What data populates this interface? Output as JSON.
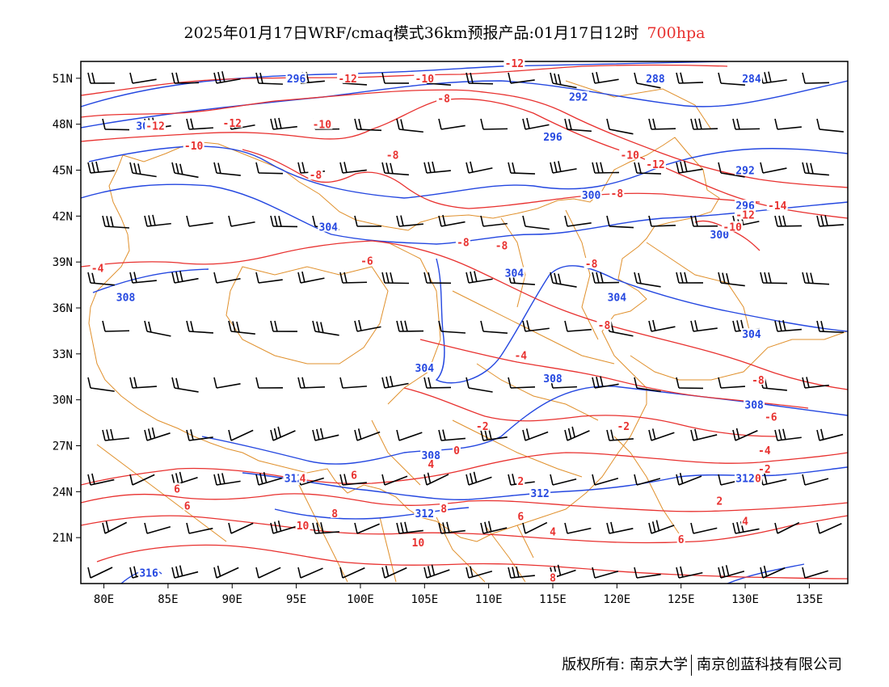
{
  "header": {
    "title": "2025年01月17日WRF/cmaq模式36km预报产品:01月17日12时",
    "level": "700hpa"
  },
  "axes": {
    "lat_labels": [
      "51N",
      "48N",
      "45N",
      "42N",
      "39N",
      "36N",
      "33N",
      "30N",
      "27N",
      "24N",
      "21N"
    ],
    "lat_values": [
      51,
      48,
      45,
      42,
      39,
      36,
      33,
      30,
      27,
      24,
      21
    ],
    "lon_labels": [
      "80E",
      "85E",
      "90E",
      "95E",
      "100E",
      "105E",
      "110E",
      "115E",
      "120E",
      "125E",
      "130E",
      "135E"
    ],
    "lon_values": [
      80,
      85,
      90,
      95,
      100,
      105,
      110,
      115,
      120,
      125,
      130,
      135
    ],
    "lon_range": [
      78.2,
      138
    ],
    "lat_range": [
      18,
      52.1
    ]
  },
  "colors": {
    "height_contour": "#2447e0",
    "temperature_contour": "#e8312f",
    "boundary": "#e0902c",
    "wind_barb": "#000000",
    "level_text": "#e8312f"
  },
  "height_labels": [
    {
      "text": "296",
      "lon": 95,
      "lat": 51
    },
    {
      "text": "292",
      "lon": 117,
      "lat": 49.8
    },
    {
      "text": "296",
      "lon": 115,
      "lat": 47.2
    },
    {
      "text": "288",
      "lon": 123,
      "lat": 51
    },
    {
      "text": "284",
      "lon": 130.5,
      "lat": 51
    },
    {
      "text": "292",
      "lon": 130,
      "lat": 45
    },
    {
      "text": "296",
      "lon": 130,
      "lat": 42.7
    },
    {
      "text": "300",
      "lon": 118,
      "lat": 43.4
    },
    {
      "text": "300",
      "lon": 128,
      "lat": 40.8
    },
    {
      "text": "304",
      "lon": 97.5,
      "lat": 41.3
    },
    {
      "text": "304",
      "lon": 112,
      "lat": 38.3
    },
    {
      "text": "304",
      "lon": 120,
      "lat": 36.7
    },
    {
      "text": "304",
      "lon": 130.5,
      "lat": 34.3
    },
    {
      "text": "304",
      "lon": 105,
      "lat": 32.1
    },
    {
      "text": "308",
      "lon": 81.7,
      "lat": 36.7
    },
    {
      "text": "308",
      "lon": 115,
      "lat": 31.4
    },
    {
      "text": "308",
      "lon": 130.7,
      "lat": 29.7
    },
    {
      "text": "308",
      "lon": 105.5,
      "lat": 26.4
    },
    {
      "text": "312",
      "lon": 94.8,
      "lat": 24.9
    },
    {
      "text": "312",
      "lon": 114,
      "lat": 23.9
    },
    {
      "text": "312",
      "lon": 105,
      "lat": 22.6
    },
    {
      "text": "312",
      "lon": 130,
      "lat": 24.9
    },
    {
      "text": "316",
      "lon": 83.5,
      "lat": 18.7
    },
    {
      "text": "30",
      "lon": 83,
      "lat": 47.9
    }
  ],
  "temp_labels": [
    {
      "text": "-12",
      "lon": 99,
      "lat": 51
    },
    {
      "text": "-10",
      "lon": 105,
      "lat": 51
    },
    {
      "text": "-12",
      "lon": 112,
      "lat": 52
    },
    {
      "text": "-8",
      "lon": 106.5,
      "lat": 49.7
    },
    {
      "text": "-12",
      "lon": 84,
      "lat": 47.9
    },
    {
      "text": "-12",
      "lon": 90,
      "lat": 48.1
    },
    {
      "text": "-10",
      "lon": 97,
      "lat": 48
    },
    {
      "text": "-10",
      "lon": 87,
      "lat": 46.6
    },
    {
      "text": "-8",
      "lon": 102.5,
      "lat": 46
    },
    {
      "text": "-8",
      "lon": 96.5,
      "lat": 44.7
    },
    {
      "text": "-10",
      "lon": 121,
      "lat": 46
    },
    {
      "text": "-12",
      "lon": 123,
      "lat": 45.4
    },
    {
      "text": "-8",
      "lon": 120,
      "lat": 43.5
    },
    {
      "text": "-12",
      "lon": 130,
      "lat": 42.1
    },
    {
      "text": "-14",
      "lon": 132.5,
      "lat": 42.7
    },
    {
      "text": "-10",
      "lon": 129,
      "lat": 41.3
    },
    {
      "text": "-8",
      "lon": 108,
      "lat": 40.3
    },
    {
      "text": "-8",
      "lon": 111,
      "lat": 40.1
    },
    {
      "text": "-6",
      "lon": 100.5,
      "lat": 39.1
    },
    {
      "text": "-8",
      "lon": 118,
      "lat": 38.9
    },
    {
      "text": "-4",
      "lon": 79.5,
      "lat": 38.6
    },
    {
      "text": "-8",
      "lon": 119,
      "lat": 34.9
    },
    {
      "text": "-4",
      "lon": 112.5,
      "lat": 32.9
    },
    {
      "text": "-2",
      "lon": 109.5,
      "lat": 28.3
    },
    {
      "text": "-2",
      "lon": 120.5,
      "lat": 28.3
    },
    {
      "text": "-8",
      "lon": 131,
      "lat": 31.3
    },
    {
      "text": "-6",
      "lon": 132,
      "lat": 28.9
    },
    {
      "text": "-4",
      "lon": 131.5,
      "lat": 26.7
    },
    {
      "text": "-2",
      "lon": 131.5,
      "lat": 25.5
    },
    {
      "text": "0",
      "lon": 131,
      "lat": 24.9
    },
    {
      "text": "2",
      "lon": 128,
      "lat": 23.4
    },
    {
      "text": "4",
      "lon": 130,
      "lat": 22.1
    },
    {
      "text": "0",
      "lon": 107.5,
      "lat": 26.7
    },
    {
      "text": "4",
      "lon": 105.5,
      "lat": 25.8
    },
    {
      "text": "2",
      "lon": 112.5,
      "lat": 24.7
    },
    {
      "text": "6",
      "lon": 85.7,
      "lat": 24.2
    },
    {
      "text": "4",
      "lon": 95.5,
      "lat": 24.9
    },
    {
      "text": "6",
      "lon": 99.5,
      "lat": 25.1
    },
    {
      "text": "6",
      "lon": 86.5,
      "lat": 23.1
    },
    {
      "text": "8",
      "lon": 106.5,
      "lat": 22.9
    },
    {
      "text": "8",
      "lon": 98,
      "lat": 22.6
    },
    {
      "text": "10",
      "lon": 95.5,
      "lat": 21.8
    },
    {
      "text": "10",
      "lon": 104.5,
      "lat": 20.7
    },
    {
      "text": "6",
      "lon": 112.5,
      "lat": 22.4
    },
    {
      "text": "4",
      "lon": 115,
      "lat": 21.4
    },
    {
      "text": "6",
      "lon": 125,
      "lat": 20.9
    },
    {
      "text": "8",
      "lon": 115,
      "lat": 18.4
    }
  ],
  "footer": {
    "copyright_left": "版权所有: 南京大学",
    "copyright_right": "南京创蓝科技有限公司"
  }
}
